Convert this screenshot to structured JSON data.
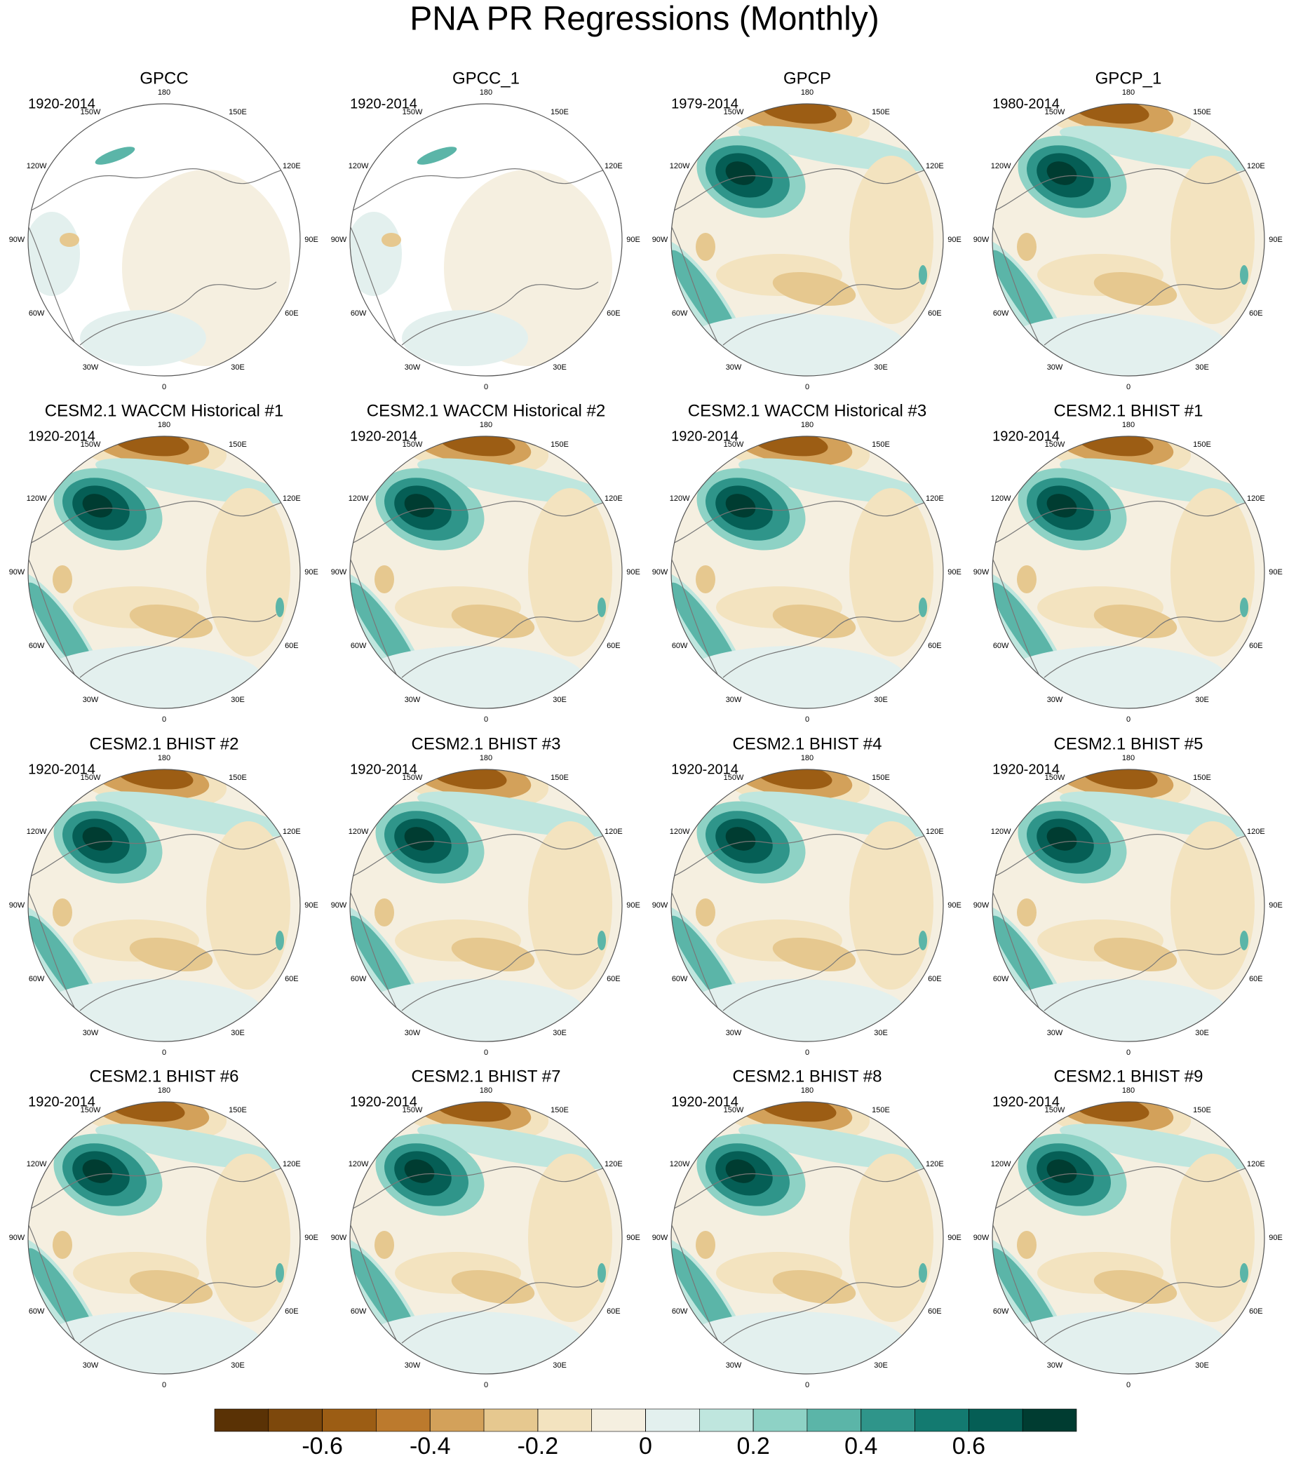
{
  "title": "PNA PR Regressions (Monthly)",
  "longitude_labels": [
    "0",
    "30E",
    "60E",
    "90E",
    "120E",
    "150E",
    "180",
    "150W",
    "120W",
    "90W",
    "60W",
    "30W"
  ],
  "panels": [
    {
      "title": "GPCC",
      "period": "1920-2014"
    },
    {
      "title": "GPCC_1",
      "period": "1920-2014"
    },
    {
      "title": "GPCP",
      "period": "1979-2014"
    },
    {
      "title": "GPCP_1",
      "period": "1980-2014"
    },
    {
      "title": "CESM2.1 WACCM Historical #1",
      "period": "1920-2014"
    },
    {
      "title": "CESM2.1 WACCM Historical #2",
      "period": "1920-2014"
    },
    {
      "title": "CESM2.1 WACCM Historical #3",
      "period": "1920-2014"
    },
    {
      "title": "CESM2.1 BHIST #1",
      "period": "1920-2014"
    },
    {
      "title": "CESM2.1 BHIST #2",
      "period": "1920-2014"
    },
    {
      "title": "CESM2.1 BHIST #3",
      "period": "1920-2014"
    },
    {
      "title": "CESM2.1 BHIST #4",
      "period": "1920-2014"
    },
    {
      "title": "CESM2.1 BHIST #5",
      "period": "1920-2014"
    },
    {
      "title": "CESM2.1 BHIST #6",
      "period": "1920-2014"
    },
    {
      "title": "CESM2.1 BHIST #7",
      "period": "1920-2014"
    },
    {
      "title": "CESM2.1 BHIST #8",
      "period": "1920-2014"
    },
    {
      "title": "CESM2.1 BHIST #9",
      "period": "1920-2014"
    }
  ],
  "colorbar": {
    "colors": [
      "#5a3205",
      "#7d480c",
      "#9c5d14",
      "#bc7a2d",
      "#d3a15a",
      "#e6c88f",
      "#f3e3bf",
      "#f5efe0",
      "#e3f0ee",
      "#bfe6de",
      "#8ed2c5",
      "#5bb5a8",
      "#2f958a",
      "#137a70",
      "#055e55",
      "#003c31"
    ],
    "xlim": [
      -0.8,
      0.8
    ],
    "xticks": [
      -0.6,
      -0.4,
      -0.2,
      0,
      0.2,
      0.4,
      0.6
    ]
  }
}
